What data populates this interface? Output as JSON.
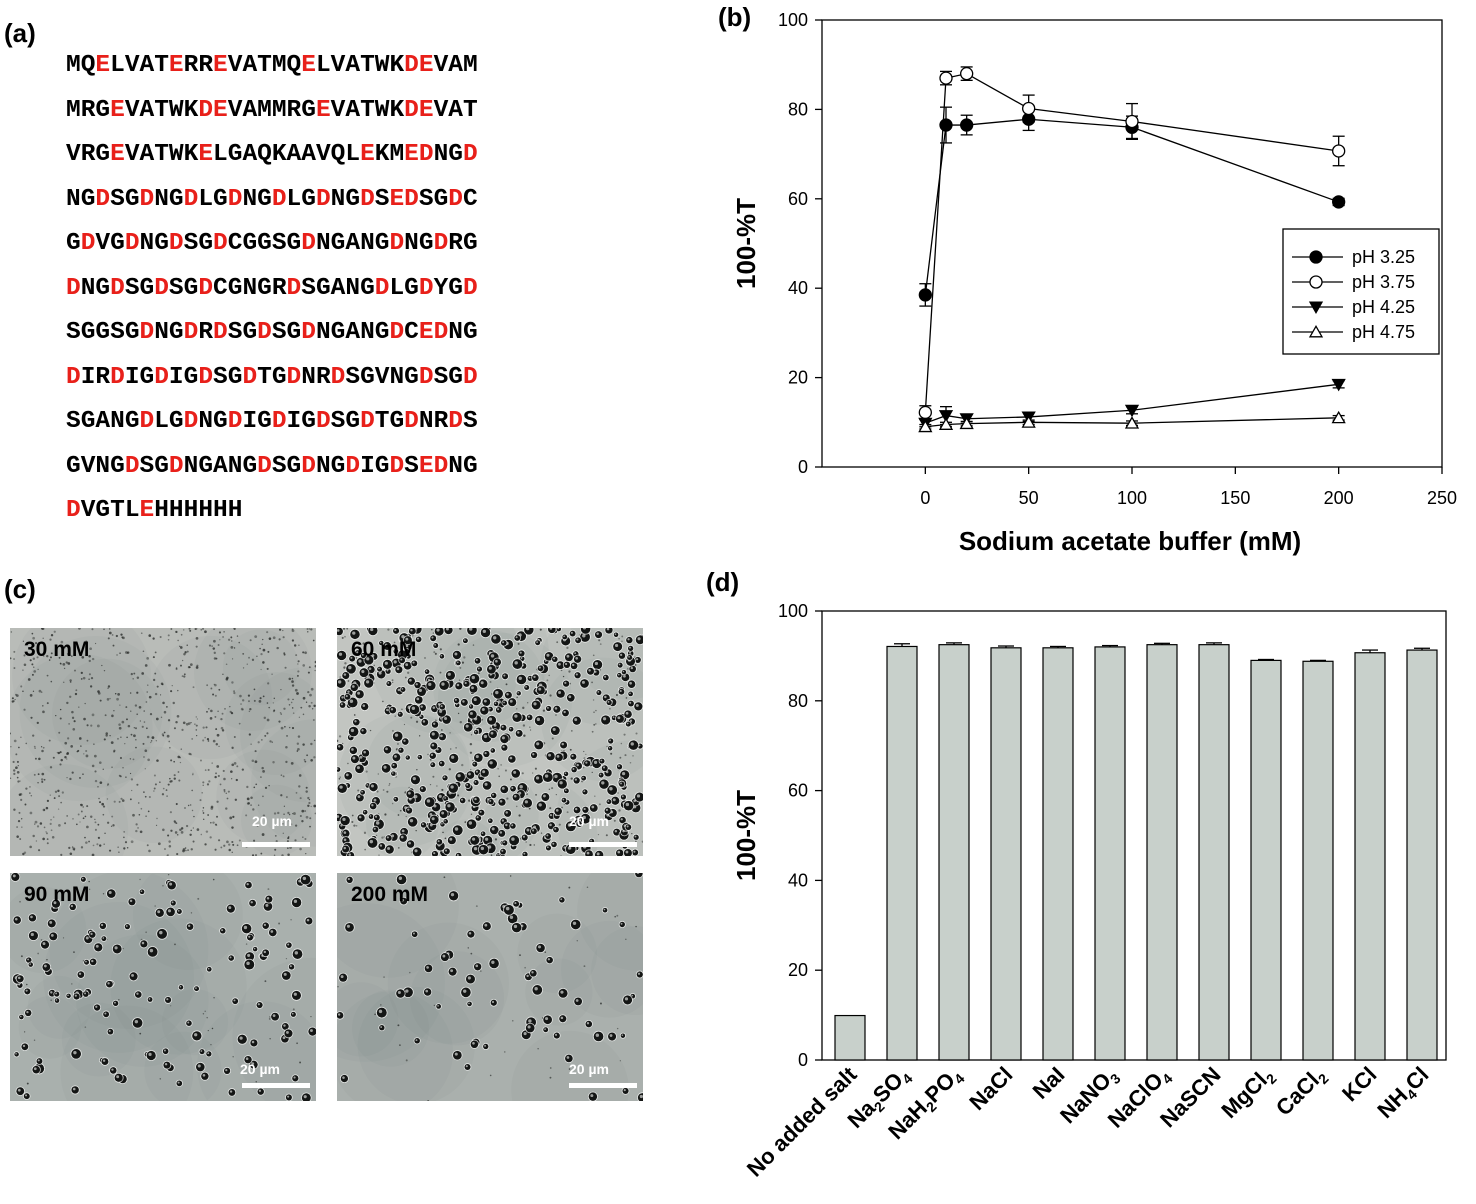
{
  "panels": {
    "a": {
      "label": "(a)"
    },
    "b": {
      "label": "(b)"
    },
    "c": {
      "label": "(c)"
    },
    "d": {
      "label": "(d)"
    }
  },
  "sequence": {
    "highlight_color": "#e8201a",
    "highlight_residues": [
      "D",
      "E"
    ],
    "lines": [
      "MQELVATERREVATMQELVATWKDEVAM",
      "MRGEVATWKDEVAMMRGEVATWKDEVAT",
      "VRGEVATWKELGAQKAAVQLEKMEDNGD",
      "NGDSGDNGDLGDNGDLGDNGDSEDSGDC",
      "GDVGDNGDSGDCGGSGDNGANGDNGDRG",
      "DNGDSGDSGDCGNGRDSGANGDLGDYGD",
      "SGGSGDNGDRDSGDSGDNGANGDCEDNG",
      "DIRDIGDIGDSGDTGDNRDSGVNGDSGD",
      "SGANGDLGDNGDIGDIGDSGDTGDNRDS",
      "GVNGDSGDNGANGDSGDNGDIGDSEDNG",
      "DVGTLEHHHHHH"
    ]
  },
  "micrographs": {
    "scale_text": "20 µm",
    "images": [
      {
        "label": "30 mM",
        "background": "#b9bcb8",
        "density": "fine-speckle"
      },
      {
        "label": "60 mM",
        "background": "#c2c5c1",
        "density": "dense-droplets"
      },
      {
        "label": "90 mM",
        "background": "#a9b0ad",
        "density": "sparse-droplets"
      },
      {
        "label": "200 mM",
        "background": "#aab0ad",
        "density": "very-sparse-droplets"
      }
    ]
  },
  "chart_data": [
    {
      "type": "line",
      "panel": "b",
      "xlabel": "Sodium acetate buffer (mM)",
      "ylabel": "100-%T",
      "xlim": [
        -50,
        250
      ],
      "ylim": [
        0,
        100
      ],
      "xticks": [
        0,
        50,
        100,
        150,
        200,
        250
      ],
      "yticks": [
        0,
        20,
        40,
        60,
        80,
        100
      ],
      "grid": false,
      "legend_position": "center-right",
      "x": [
        0,
        10,
        20,
        50,
        100,
        200
      ],
      "series": [
        {
          "name": "pH 3.25",
          "marker": "filled-circle",
          "values": [
            38.5,
            76.5,
            76.5,
            77.8,
            76.0,
            59.3
          ],
          "errors": [
            2.5,
            4.0,
            2.2,
            2.5,
            2.5,
            0.8
          ]
        },
        {
          "name": "pH 3.75",
          "marker": "open-circle",
          "values": [
            12.2,
            87.0,
            88.0,
            80.2,
            77.3,
            70.7
          ],
          "errors": [
            1.5,
            1.5,
            1.5,
            3.0,
            4.0,
            3.3
          ]
        },
        {
          "name": "pH 4.25",
          "marker": "filled-triangle-down",
          "values": [
            9.8,
            11.5,
            10.8,
            11.2,
            12.7,
            18.5
          ],
          "errors": [
            0.8,
            2.0,
            1.0,
            1.0,
            0.8,
            0.8
          ]
        },
        {
          "name": "pH 4.75",
          "marker": "open-triangle-up",
          "values": [
            9.0,
            9.5,
            9.7,
            10.0,
            9.8,
            11.0
          ],
          "errors": [
            0.5,
            0.5,
            0.5,
            0.5,
            0.5,
            0.5
          ]
        }
      ]
    },
    {
      "type": "bar",
      "panel": "d",
      "ylabel": "100-%T",
      "ylim": [
        0,
        100
      ],
      "yticks": [
        0,
        20,
        40,
        60,
        80,
        100
      ],
      "grid": false,
      "bar_color": "#c8d0cb",
      "categories": [
        {
          "base": "No added salt",
          "sub": []
        },
        {
          "base": "Na",
          "sub": [
            [
              "2",
              "SO"
            ],
            [
              "4",
              ""
            ]
          ]
        },
        {
          "base": "NaH",
          "sub": [
            [
              "2",
              "PO"
            ],
            [
              "4",
              ""
            ]
          ]
        },
        {
          "base": "NaCl",
          "sub": []
        },
        {
          "base": "NaI",
          "sub": []
        },
        {
          "base": "NaNO",
          "sub": [
            [
              "3",
              ""
            ]
          ]
        },
        {
          "base": "NaClO",
          "sub": [
            [
              "4",
              ""
            ]
          ]
        },
        {
          "base": "NaSCN",
          "sub": []
        },
        {
          "base": "MgCl",
          "sub": [
            [
              "2",
              ""
            ]
          ]
        },
        {
          "base": "CaCl",
          "sub": [
            [
              "2",
              ""
            ]
          ]
        },
        {
          "base": "KCl",
          "sub": []
        },
        {
          "base": "NH",
          "sub": [
            [
              "4",
              "Cl"
            ]
          ]
        }
      ],
      "values": [
        9.9,
        92.1,
        92.5,
        91.8,
        91.8,
        92.0,
        92.5,
        92.5,
        89.0,
        88.8,
        90.7,
        91.3
      ],
      "errors": [
        0.0,
        0.6,
        0.4,
        0.4,
        0.3,
        0.3,
        0.3,
        0.4,
        0.2,
        0.2,
        0.6,
        0.4
      ]
    }
  ]
}
